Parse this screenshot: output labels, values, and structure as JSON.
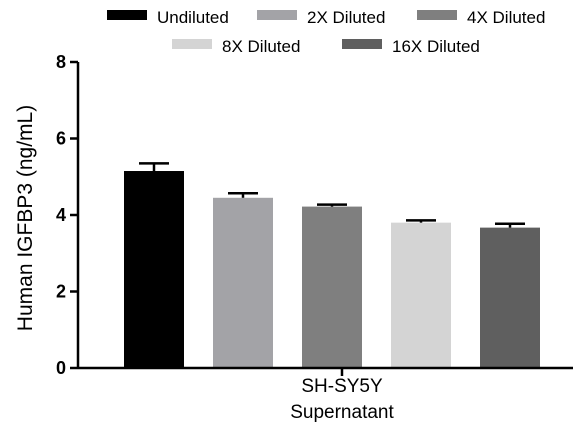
{
  "chart_data": {
    "type": "bar",
    "title": "",
    "xlabel": "",
    "ylabel": "Human IGFBP3 (ng/mL)",
    "category_label_lines": [
      "SH-SY5Y",
      "Supernatant"
    ],
    "ylim": [
      0,
      8
    ],
    "yticks": [
      0,
      2,
      4,
      6,
      8
    ],
    "grid": false,
    "legend_placement": "top",
    "series": [
      {
        "name": "Undiluted",
        "value": 5.15,
        "error": 0.2,
        "color": "#000000"
      },
      {
        "name": "2X Diluted",
        "value": 4.45,
        "error": 0.12,
        "color": "#a3a3a7"
      },
      {
        "name": "4X Diluted",
        "value": 4.22,
        "error": 0.05,
        "color": "#7f7f7f"
      },
      {
        "name": "8X Diluted",
        "value": 3.8,
        "error": 0.06,
        "color": "#d4d4d4"
      },
      {
        "name": "16X Diluted",
        "value": 3.67,
        "error": 0.1,
        "color": "#5f5f5f"
      }
    ]
  }
}
